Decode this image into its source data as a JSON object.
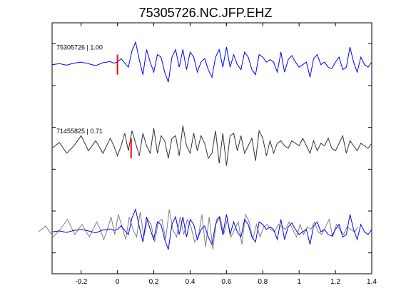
{
  "chart_data": {
    "type": "line",
    "title": "75305726.NC.JFP.EHZ",
    "xlabel": "",
    "ylabel": "",
    "xlim": [
      -0.36,
      1.4
    ],
    "ylim": [
      0,
      3
    ],
    "xticks": [
      -0.2,
      0,
      0.2,
      0.4,
      0.6,
      0.8,
      1,
      1.2,
      1.4
    ],
    "xtick_labels": [
      "-0.2",
      "0",
      "0.2",
      "0.4",
      "0.6",
      "0.8",
      "1",
      "1.2",
      "1.4"
    ],
    "yticks_right": [
      0.25,
      0.75,
      1.25,
      1.75,
      2.25,
      2.75
    ],
    "grid": false,
    "pick_marker_color": "#ff0000",
    "series": [
      {
        "label": "75305726 | 1.00",
        "color": "#0000ff",
        "baseline": 2.5,
        "pick_time": 0.0,
        "x": [
          -0.36,
          -0.32,
          -0.28,
          -0.24,
          -0.2,
          -0.16,
          -0.12,
          -0.08,
          -0.04,
          -0.02,
          0.0,
          0.02,
          0.04,
          0.06,
          0.08,
          0.1,
          0.12,
          0.14,
          0.16,
          0.18,
          0.2,
          0.22,
          0.24,
          0.26,
          0.28,
          0.3,
          0.32,
          0.34,
          0.36,
          0.38,
          0.4,
          0.42,
          0.44,
          0.46,
          0.48,
          0.5,
          0.52,
          0.54,
          0.56,
          0.58,
          0.6,
          0.62,
          0.64,
          0.66,
          0.68,
          0.7,
          0.72,
          0.74,
          0.76,
          0.78,
          0.8,
          0.82,
          0.84,
          0.86,
          0.88,
          0.9,
          0.92,
          0.94,
          0.96,
          0.98,
          1.0,
          1.02,
          1.04,
          1.06,
          1.08,
          1.1,
          1.12,
          1.14,
          1.16,
          1.18,
          1.2,
          1.22,
          1.24,
          1.26,
          1.28,
          1.3,
          1.32,
          1.34,
          1.36,
          1.38,
          1.4
        ],
        "y": [
          0.0,
          0.02,
          -0.01,
          0.03,
          0.05,
          0.02,
          -0.02,
          0.04,
          0.06,
          0.03,
          0.05,
          0.12,
          0.03,
          -0.05,
          0.28,
          0.45,
          0.1,
          -0.2,
          0.3,
          0.05,
          -0.15,
          0.2,
          0.15,
          -0.15,
          -0.35,
          0.15,
          0.3,
          -0.05,
          0.3,
          -0.1,
          0.25,
          0.15,
          -0.15,
          0.05,
          0.12,
          -0.1,
          -0.25,
          0.15,
          0.3,
          -0.05,
          0.35,
          -0.05,
          0.2,
          0.0,
          -0.1,
          0.25,
          0.15,
          -0.1,
          -0.2,
          0.2,
          0.15,
          0.05,
          0.1,
          0.05,
          -0.15,
          0.25,
          -0.15,
          0.1,
          0.18,
          0.05,
          -0.05,
          0.0,
          0.05,
          -0.25,
          0.12,
          0.2,
          0.0,
          0.05,
          -0.05,
          -0.08,
          0.05,
          0.15,
          -0.1,
          -0.05,
          0.35,
          0.05,
          -0.15,
          0.15,
          0.0,
          -0.05,
          0.05
        ]
      },
      {
        "label": "71455825 | 0.71",
        "color": "#333333",
        "baseline": 1.5,
        "pick_time": 0.075,
        "x": [
          -0.36,
          -0.32,
          -0.28,
          -0.24,
          -0.2,
          -0.16,
          -0.12,
          -0.08,
          -0.04,
          -0.02,
          0.0,
          0.02,
          0.04,
          0.06,
          0.08,
          0.1,
          0.12,
          0.14,
          0.16,
          0.18,
          0.2,
          0.22,
          0.24,
          0.26,
          0.28,
          0.3,
          0.32,
          0.34,
          0.36,
          0.38,
          0.4,
          0.42,
          0.44,
          0.46,
          0.48,
          0.5,
          0.52,
          0.54,
          0.56,
          0.58,
          0.6,
          0.62,
          0.64,
          0.66,
          0.68,
          0.7,
          0.72,
          0.74,
          0.76,
          0.78,
          0.8,
          0.82,
          0.84,
          0.86,
          0.88,
          0.9,
          0.92,
          0.94,
          0.96,
          0.98,
          1.0,
          1.02,
          1.04,
          1.06,
          1.08,
          1.1,
          1.12,
          1.14,
          1.16,
          1.18,
          1.2,
          1.22,
          1.24,
          1.26,
          1.28,
          1.3,
          1.32,
          1.34,
          1.36,
          1.38,
          1.4
        ],
        "y": [
          0.0,
          0.12,
          -0.1,
          0.05,
          0.25,
          -0.05,
          0.15,
          -0.1,
          0.2,
          0.05,
          -0.15,
          0.05,
          0.3,
          -0.05,
          0.35,
          0.1,
          -0.15,
          0.3,
          0.05,
          -0.1,
          0.4,
          -0.1,
          0.25,
          0.15,
          -0.2,
          0.2,
          0.25,
          -0.15,
          0.45,
          0.05,
          -0.1,
          0.3,
          -0.05,
          0.25,
          0.1,
          -0.2,
          -0.1,
          0.35,
          -0.3,
          0.3,
          -0.35,
          0.25,
          0.3,
          -0.05,
          0.25,
          -0.1,
          0.05,
          0.2,
          -0.25,
          0.35,
          0.2,
          -0.15,
          0.15,
          -0.1,
          0.1,
          0.15,
          0.05,
          0.0,
          0.15,
          0.1,
          0.05,
          0.2,
          0.05,
          -0.1,
          0.15,
          -0.05,
          0.1,
          0.05,
          0.2,
          0.0,
          -0.05,
          0.1,
          0.25,
          -0.1,
          0.15,
          0.05,
          -0.05,
          0.1,
          0.05,
          0.0,
          0.1
        ]
      }
    ]
  }
}
